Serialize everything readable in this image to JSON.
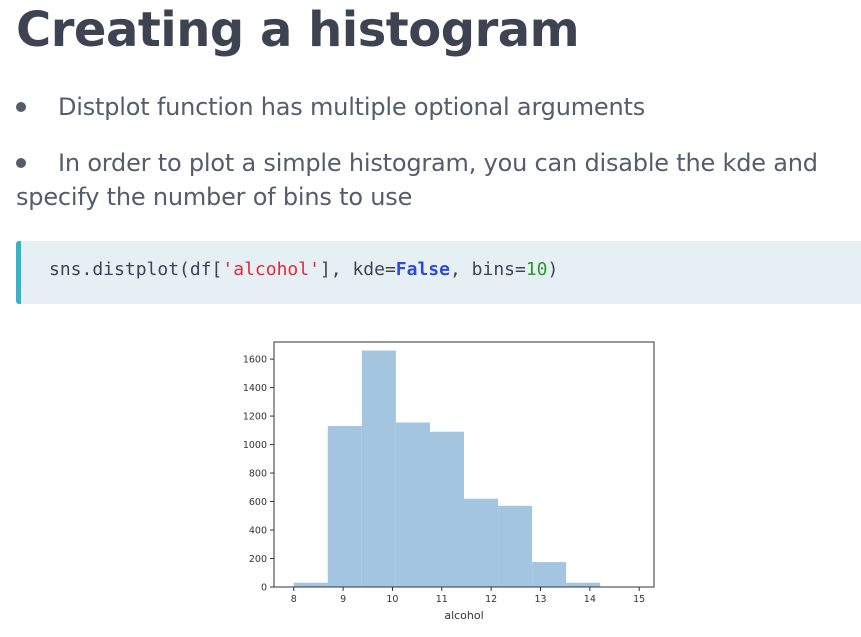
{
  "slide": {
    "title": "Creating a histogram",
    "bullets": [
      {
        "text": "Distplot function has multiple optional arguments"
      },
      {
        "line1": "In order to plot a simple histogram, you can disable the kde and",
        "line2": "specify the number of bins to use"
      }
    ]
  },
  "code": {
    "prefix": "sns.distplot(df[",
    "string_arg": "'alcohol'",
    "middle": "], kde=",
    "keyword": "False",
    "comma": ", bins=",
    "number": "10",
    "suffix": ")"
  },
  "colors": {
    "bar": "#a3c5e0",
    "code_accent": "#35b3c9",
    "string": "#e0293a",
    "keyword": "#2d49e0",
    "number": "#2d9a2d"
  },
  "chart_data": {
    "type": "bar",
    "xlabel": "alcohol",
    "ylabel": "",
    "xlim": [
      7.6,
      15.3
    ],
    "ylim": [
      0,
      1720
    ],
    "x_ticks": [
      8,
      9,
      10,
      11,
      12,
      13,
      14,
      15
    ],
    "y_ticks": [
      0,
      200,
      400,
      600,
      800,
      1000,
      1200,
      1400,
      1600
    ],
    "bin_edges": [
      8.0,
      8.69,
      9.38,
      10.07,
      10.76,
      11.45,
      12.14,
      12.83,
      13.52,
      14.21,
      14.9
    ],
    "values": [
      30,
      1130,
      1660,
      1155,
      1090,
      620,
      570,
      175,
      30,
      0
    ],
    "grid": false
  }
}
